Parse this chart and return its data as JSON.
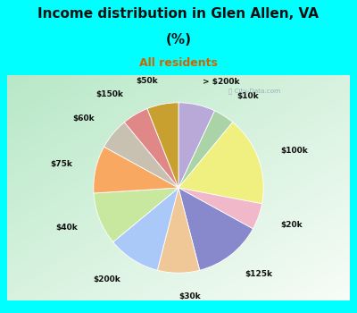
{
  "title_line1": "Income distribution in Glen Allen, VA",
  "title_line2": "(%)",
  "subtitle": "All residents",
  "fig_bg": "#00FFFF",
  "labels": [
    "> $200k",
    "$10k",
    "$100k",
    "$20k",
    "$125k",
    "$30k",
    "$200k",
    "$40k",
    "$75k",
    "$60k",
    "$150k",
    "$50k"
  ],
  "values": [
    7,
    4,
    17,
    5,
    13,
    8,
    10,
    10,
    9,
    6,
    5,
    6
  ],
  "colors": [
    "#b8a9d9",
    "#aad4a8",
    "#f0f080",
    "#f0b8c8",
    "#8888cc",
    "#f0c898",
    "#aac8f8",
    "#c8e8a0",
    "#f8a860",
    "#c8c0b0",
    "#e08888",
    "#c8a030"
  ],
  "startangle": 90,
  "labeldistance": 1.28,
  "title_fontsize": 11,
  "subtitle_fontsize": 9,
  "label_fontsize": 6.5
}
